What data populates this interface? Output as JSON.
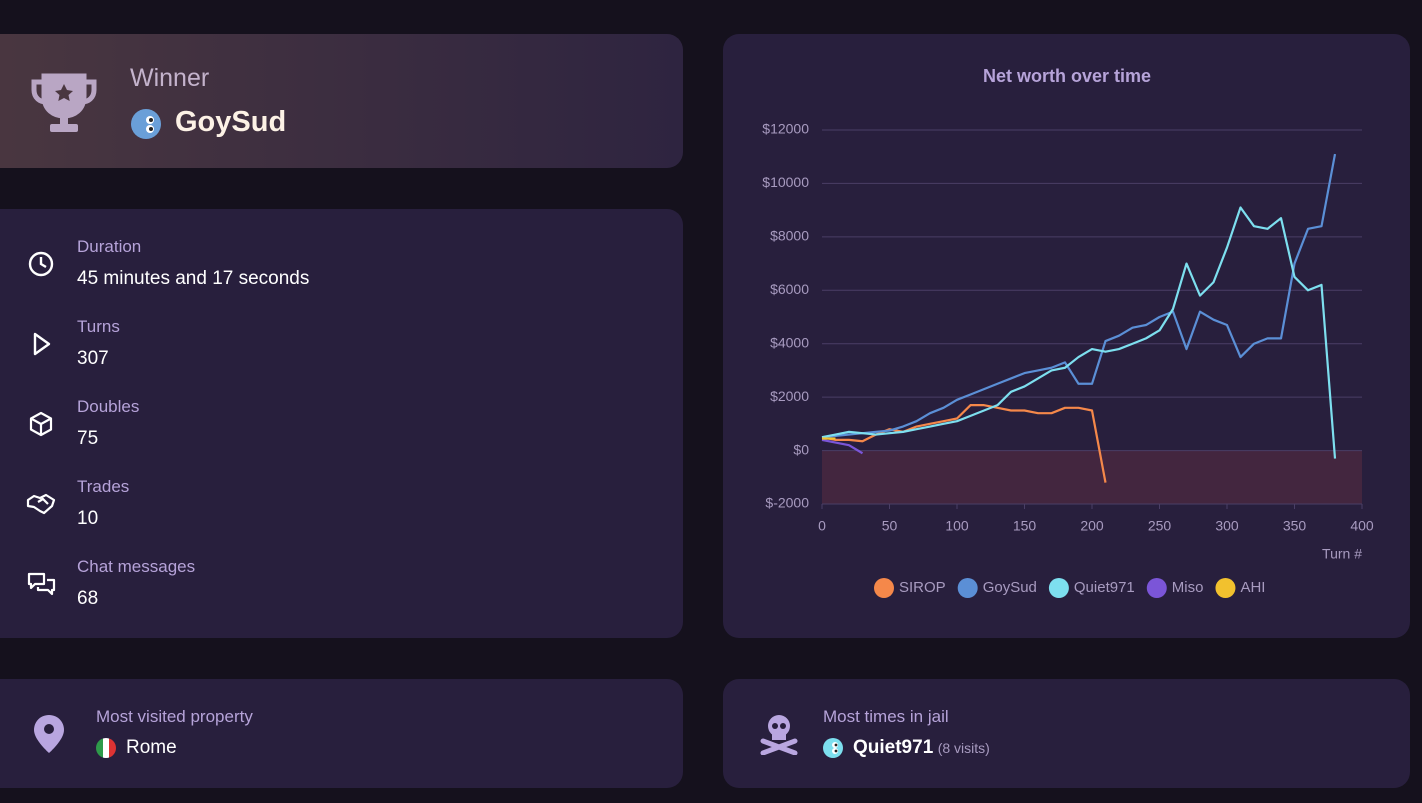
{
  "winner": {
    "label": "Winner",
    "name": "GoySud"
  },
  "stats": [
    {
      "label": "Duration",
      "value": "45 minutes and 17 seconds"
    },
    {
      "label": "Turns",
      "value": "307"
    },
    {
      "label": "Doubles",
      "value": "75"
    },
    {
      "label": "Trades",
      "value": "10"
    },
    {
      "label": "Chat messages",
      "value": "68"
    }
  ],
  "most_visited": {
    "label": "Most visited property",
    "value": "Rome"
  },
  "most_jail": {
    "label": "Most times in jail",
    "name": "Quiet971",
    "detail": "(8 visits)"
  },
  "chart_data": {
    "type": "line",
    "title": "Net worth over time",
    "x_label": "Turn #",
    "x": [
      0,
      10,
      20,
      30,
      40,
      50,
      60,
      70,
      80,
      90,
      100,
      110,
      120,
      130,
      140,
      150,
      160,
      170,
      180,
      190,
      200,
      210,
      220,
      230,
      240,
      250,
      260,
      270,
      280,
      290,
      300,
      310,
      320,
      330,
      340,
      350,
      360,
      370,
      380
    ],
    "series": [
      {
        "name": "SIROP",
        "color": "#f5884a",
        "values": [
          500,
          400,
          400,
          350,
          600,
          800,
          700,
          900,
          1000,
          1100,
          1200,
          1700,
          1700,
          1600,
          1500,
          1500,
          1400,
          1400,
          1600,
          1600,
          1500,
          -1200,
          null,
          null,
          null,
          null,
          null,
          null,
          null,
          null,
          null,
          null,
          null,
          null,
          null,
          null,
          null,
          null,
          null
        ]
      },
      {
        "name": "GoySud",
        "color": "#5b8fd6",
        "values": [
          500,
          550,
          600,
          650,
          700,
          750,
          900,
          1100,
          1400,
          1600,
          1900,
          2100,
          2300,
          2500,
          2700,
          2900,
          3000,
          3100,
          3300,
          2500,
          2500,
          4100,
          4300,
          4600,
          4700,
          5000,
          5200,
          3800,
          5200,
          4900,
          4700,
          3500,
          4000,
          4200,
          4200,
          7000,
          8300,
          8400,
          11100
        ]
      },
      {
        "name": "Quiet971",
        "color": "#7ddfef",
        "values": [
          500,
          600,
          700,
          650,
          600,
          650,
          700,
          800,
          900,
          1000,
          1100,
          1300,
          1500,
          1700,
          2200,
          2400,
          2700,
          3000,
          3100,
          3500,
          3800,
          3700,
          3800,
          4000,
          4200,
          4500,
          5300,
          7000,
          5800,
          6300,
          7600,
          9100,
          8400,
          8300,
          8700,
          6500,
          6000,
          6200,
          -300
        ]
      },
      {
        "name": "Miso",
        "color": "#7b55d8",
        "values": [
          400,
          300,
          200,
          -100,
          null,
          null,
          null,
          null,
          null,
          null,
          null,
          null,
          null,
          null,
          null,
          null,
          null,
          null,
          null,
          null,
          null,
          null,
          null,
          null,
          null,
          null,
          null,
          null,
          null,
          null,
          null,
          null,
          null,
          null,
          null,
          null,
          null,
          null,
          null
        ]
      },
      {
        "name": "AHI",
        "color": "#f2c12e",
        "values": [
          450,
          450,
          null,
          null,
          null,
          null,
          null,
          null,
          null,
          null,
          null,
          null,
          null,
          null,
          null,
          null,
          null,
          null,
          null,
          null,
          null,
          null,
          null,
          null,
          null,
          null,
          null,
          null,
          null,
          null,
          null,
          null,
          null,
          null,
          null,
          null,
          null,
          null,
          null
        ]
      }
    ],
    "xlim": [
      0,
      400
    ],
    "xticks": [
      0,
      50,
      100,
      150,
      200,
      250,
      300,
      350,
      400
    ],
    "ylim": [
      -2000,
      12000
    ],
    "yticks": [
      {
        "value": -2000,
        "label": "$-2000"
      },
      {
        "value": 0,
        "label": "$0"
      },
      {
        "value": 2000,
        "label": "$2000"
      },
      {
        "value": 4000,
        "label": "$4000"
      },
      {
        "value": 6000,
        "label": "$6000"
      },
      {
        "value": 8000,
        "label": "$8000"
      },
      {
        "value": 10000,
        "label": "$10000"
      },
      {
        "value": 12000,
        "label": "$12000"
      }
    ],
    "grid": true
  }
}
